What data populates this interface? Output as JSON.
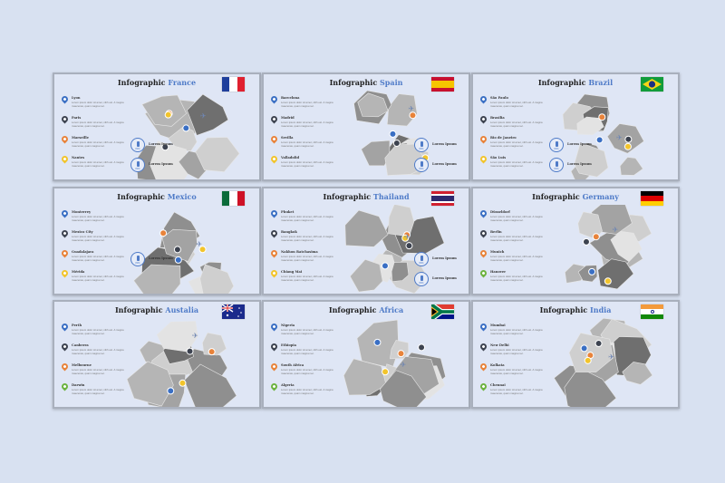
{
  "colors": {
    "background": "#d8e1f1",
    "accent": "#4f7bc8",
    "pin_blue": "#3a6fc4",
    "pin_dark": "#3d4350",
    "pin_orange": "#e8833a",
    "pin_yellow": "#f2c42c",
    "pin_green": "#6cb33f"
  },
  "slides": [
    {
      "title_prefix": "Infographic",
      "country": "France",
      "flag": "france",
      "items": [
        {
          "name": "Lyon",
          "pin": "blue"
        },
        {
          "name": "Paris",
          "pin": "dark"
        },
        {
          "name": "Marseille",
          "pin": "orange"
        },
        {
          "name": "Nantes",
          "pin": "yellow"
        }
      ],
      "badges": [
        {
          "label": "Lorem Ipsum",
          "value": "80%"
        },
        {
          "label": "Lorem Ipsum",
          "value": "80%"
        }
      ]
    },
    {
      "title_prefix": "Infographic",
      "country": "Spain",
      "flag": "spain",
      "items": [
        {
          "name": "Barcelona",
          "pin": "blue"
        },
        {
          "name": "Madrid",
          "pin": "dark"
        },
        {
          "name": "Sevilla",
          "pin": "orange"
        },
        {
          "name": "Valladolid",
          "pin": "yellow"
        }
      ],
      "badges": [
        {
          "label": "Lorem Ipsum",
          "value": "80%"
        },
        {
          "label": "Lorem Ipsum",
          "value": "80%"
        }
      ]
    },
    {
      "title_prefix": "Infographic",
      "country": "Brazil",
      "flag": "brazil",
      "items": [
        {
          "name": "São Paulo",
          "pin": "blue"
        },
        {
          "name": "Brasilia",
          "pin": "dark"
        },
        {
          "name": "Rio de Janeiro",
          "pin": "orange"
        },
        {
          "name": "São Luis",
          "pin": "yellow"
        }
      ],
      "badges": [
        {
          "label": "Lorem Ipsum",
          "value": "80%"
        },
        {
          "label": "Lorem Ipsum",
          "value": "80%"
        }
      ]
    },
    {
      "title_prefix": "Infographic",
      "country": "Mexico",
      "flag": "mexico",
      "items": [
        {
          "name": "Monterrey",
          "pin": "blue"
        },
        {
          "name": "Mexico City",
          "pin": "dark"
        },
        {
          "name": "Guadalajara",
          "pin": "orange"
        },
        {
          "name": "Mérida",
          "pin": "yellow"
        }
      ],
      "badges": [
        {
          "label": "Lorem Ipsum",
          "value": "80%"
        }
      ]
    },
    {
      "title_prefix": "Infographic",
      "country": "Thailand",
      "flag": "thailand",
      "items": [
        {
          "name": "Phuket",
          "pin": "blue"
        },
        {
          "name": "Bangkok",
          "pin": "dark"
        },
        {
          "name": "Nakhon Ratchasima",
          "pin": "orange"
        },
        {
          "name": "Chiang Mai",
          "pin": "yellow"
        }
      ],
      "badges": [
        {
          "label": "Lorem Ipsum",
          "value": "80%"
        },
        {
          "label": "Lorem Ipsum",
          "value": "80%"
        }
      ]
    },
    {
      "title_prefix": "Infographic",
      "country": "Germany",
      "flag": "germany",
      "items": [
        {
          "name": "Düsseldorf",
          "pin": "blue"
        },
        {
          "name": "Berlin",
          "pin": "dark"
        },
        {
          "name": "Munich",
          "pin": "orange"
        },
        {
          "name": "Hanover",
          "pin": "green"
        }
      ],
      "badges": []
    },
    {
      "title_prefix": "Infographic",
      "country": "Austalia",
      "flag": "australia",
      "items": [
        {
          "name": "Perth",
          "pin": "blue"
        },
        {
          "name": "Canberra",
          "pin": "dark"
        },
        {
          "name": "Melbourne",
          "pin": "orange"
        },
        {
          "name": "Darwin",
          "pin": "green"
        }
      ],
      "badges": []
    },
    {
      "title_prefix": "Infographic",
      "country": "Africa",
      "flag": "southafrica",
      "items": [
        {
          "name": "Nigeria",
          "pin": "blue"
        },
        {
          "name": "Ethiopia",
          "pin": "dark"
        },
        {
          "name": "South Africa",
          "pin": "orange"
        },
        {
          "name": "Algeria",
          "pin": "green"
        }
      ],
      "badges": []
    },
    {
      "title_prefix": "Infographic",
      "country": "India",
      "flag": "india",
      "items": [
        {
          "name": "Mumbai",
          "pin": "blue"
        },
        {
          "name": "New Delhi",
          "pin": "dark"
        },
        {
          "name": "Kolkata",
          "pin": "orange"
        },
        {
          "name": "Chennai",
          "pin": "green"
        }
      ],
      "badges": []
    }
  ],
  "item_text": "Lorem ipsum dolor sit amet, nibh est. A magna maecenas, quam magna nec."
}
